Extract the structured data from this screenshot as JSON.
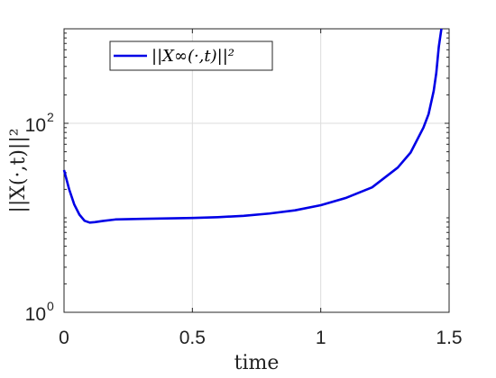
{
  "chart_data": {
    "type": "line",
    "title": "",
    "xlabel": "time",
    "ylabel": "||X(·,t)||²",
    "xlim": [
      0,
      1.5
    ],
    "ylim": [
      1,
      1000
    ],
    "yscale": "log",
    "grid": true,
    "legend_position": "top-left",
    "x_ticks": [
      0,
      0.5,
      1,
      1.5
    ],
    "x_tick_labels": [
      "0",
      "0.5",
      "1",
      "1.5"
    ],
    "y_ticks": [
      1,
      100
    ],
    "y_tick_labels": [
      {
        "base": "10",
        "exp": "0"
      },
      {
        "base": "10",
        "exp": "2"
      }
    ],
    "series": [
      {
        "name": "||X∞(·,t)||²",
        "color": "#0000e6",
        "x": [
          0,
          0.02,
          0.04,
          0.06,
          0.08,
          0.1,
          0.12,
          0.15,
          0.2,
          0.3,
          0.4,
          0.5,
          0.6,
          0.7,
          0.8,
          0.9,
          1.0,
          1.1,
          1.2,
          1.3,
          1.35,
          1.4,
          1.42,
          1.44,
          1.45,
          1.46,
          1.47
        ],
        "y": [
          32,
          20,
          13.8,
          10.8,
          9.3,
          8.9,
          9.0,
          9.25,
          9.6,
          9.75,
          9.85,
          9.95,
          10.15,
          10.5,
          11.1,
          12.0,
          13.6,
          16.3,
          21.0,
          34.0,
          49.0,
          90.0,
          125.0,
          220.0,
          340.0,
          650.0,
          1000.0
        ]
      }
    ]
  }
}
